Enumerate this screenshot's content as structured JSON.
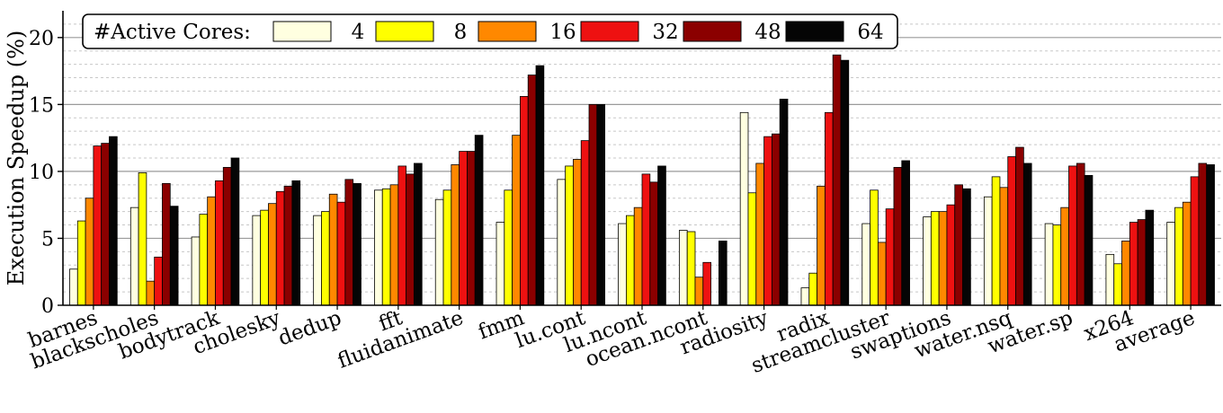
{
  "chart_data": {
    "type": "bar",
    "title": "",
    "xlabel": "",
    "ylabel": "Execution Speedup (%)",
    "ylim": [
      0,
      22
    ],
    "yticks": [
      0,
      5,
      10,
      15,
      20
    ],
    "minor_grid_step": 1,
    "grid": true,
    "legend": {
      "title": "#Active Cores:",
      "position": "top-left"
    },
    "categories": [
      "barnes",
      "blackscholes",
      "bodytrack",
      "cholesky",
      "dedup",
      "fft",
      "fluidanimate",
      "fmm",
      "lu.cont",
      "lu.ncont",
      "ocean.ncont",
      "radiosity",
      "radix",
      "streamcluster",
      "swaptions",
      "water.nsq",
      "water.sp",
      "x264",
      "average"
    ],
    "series": [
      {
        "name": "4",
        "color": "#ffffe0",
        "values": [
          2.7,
          7.3,
          5.1,
          6.7,
          6.7,
          8.6,
          7.9,
          6.2,
          9.4,
          6.1,
          5.6,
          14.4,
          1.3,
          6.1,
          6.6,
          8.1,
          6.1,
          3.8,
          6.2
        ]
      },
      {
        "name": "8",
        "color": "#ffff00",
        "values": [
          6.3,
          9.9,
          6.8,
          7.1,
          7.0,
          8.7,
          8.6,
          8.6,
          10.4,
          6.7,
          5.5,
          8.4,
          2.4,
          8.6,
          7.0,
          9.6,
          6.0,
          3.1,
          7.3
        ]
      },
      {
        "name": "16",
        "color": "#ff8800",
        "values": [
          8.0,
          1.8,
          8.1,
          7.6,
          8.3,
          9.0,
          10.5,
          12.7,
          10.9,
          7.3,
          2.1,
          10.6,
          8.9,
          4.7,
          7.0,
          8.8,
          7.3,
          4.8,
          7.7
        ]
      },
      {
        "name": "32",
        "color": "#ee1111",
        "values": [
          11.9,
          3.6,
          9.3,
          8.5,
          7.7,
          10.4,
          11.5,
          15.6,
          12.3,
          9.8,
          3.2,
          12.6,
          14.4,
          7.2,
          7.5,
          11.1,
          10.4,
          6.2,
          9.6
        ]
      },
      {
        "name": "48",
        "color": "#8b0000",
        "values": [
          12.1,
          9.1,
          10.3,
          8.9,
          9.4,
          9.8,
          11.5,
          17.2,
          15.0,
          9.2,
          0.0,
          12.8,
          18.7,
          10.3,
          9.0,
          11.8,
          10.6,
          6.4,
          10.6
        ]
      },
      {
        "name": "64",
        "color": "#050505",
        "values": [
          12.6,
          7.4,
          11.0,
          9.3,
          9.1,
          10.6,
          12.7,
          17.9,
          15.0,
          10.4,
          4.8,
          15.4,
          18.3,
          10.8,
          8.7,
          10.6,
          9.7,
          7.1,
          10.5
        ]
      }
    ]
  }
}
